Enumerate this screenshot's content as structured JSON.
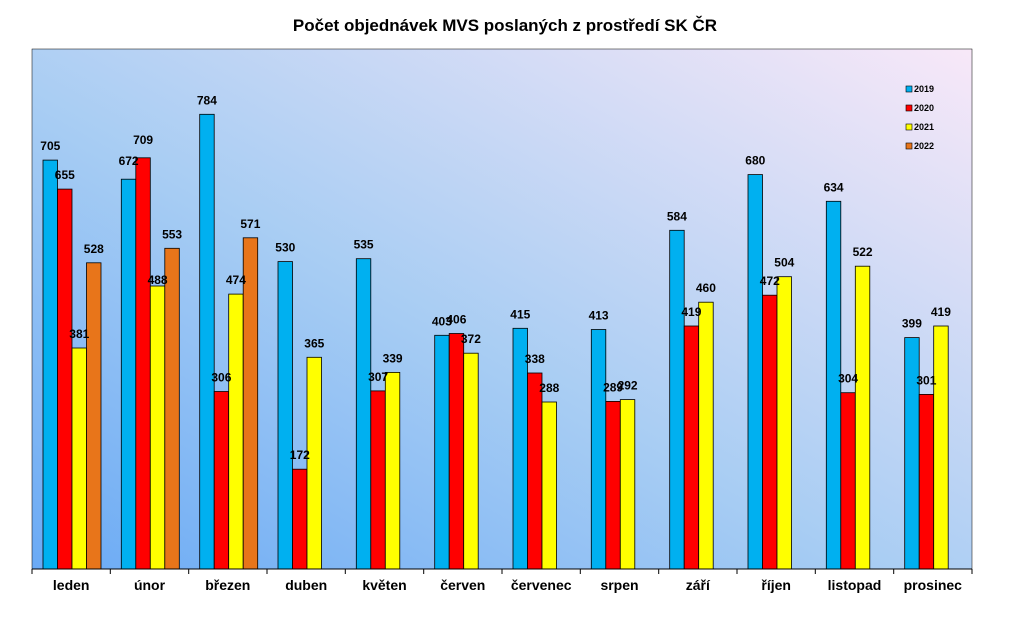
{
  "chart_data": {
    "type": "bar",
    "title": "Počet objednávek MVS poslaných z prostředí SK ČR",
    "xlabel": "",
    "ylabel": "",
    "ylim": [
      0,
      880
    ],
    "grid": false,
    "legend_position": "top-right",
    "categories": [
      "leden",
      "únor",
      "březen",
      "duben",
      "květen",
      "červen",
      "červenec",
      "srpen",
      "září",
      "říjen",
      "listopad",
      "prosinec"
    ],
    "series": [
      {
        "name": "2019",
        "color": "#00b0f0",
        "values": [
          705,
          672,
          784,
          530,
          535,
          403,
          415,
          413,
          584,
          680,
          634,
          399
        ]
      },
      {
        "name": "2020",
        "color": "#ff0000",
        "values": [
          655,
          709,
          306,
          172,
          307,
          406,
          338,
          289,
          419,
          472,
          304,
          301
        ]
      },
      {
        "name": "2021",
        "color": "#ffff00",
        "values": [
          381,
          488,
          474,
          365,
          339,
          372,
          288,
          292,
          460,
          504,
          522,
          419
        ]
      },
      {
        "name": "2022",
        "color": "#e8751a",
        "values": [
          528,
          553,
          571,
          null,
          null,
          null,
          null,
          null,
          null,
          null,
          null,
          null
        ]
      }
    ]
  }
}
